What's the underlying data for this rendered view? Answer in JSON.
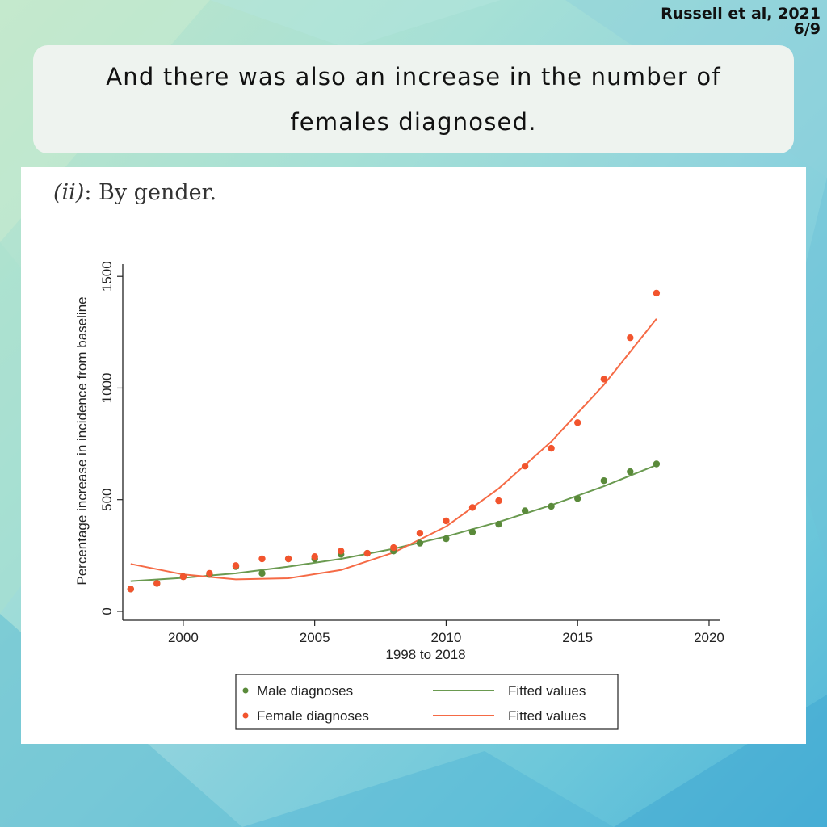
{
  "header": {
    "citation_line1": "Russell et al, 2021",
    "citation_line2": "6/9",
    "message": "And there was also an increase in the number of females diagnosed."
  },
  "panel": {
    "label": "(ii)",
    "caption": ": By gender."
  },
  "chart_data": {
    "type": "scatter",
    "xlabel": "1998 to 2018",
    "ylabel": "Percentage increase in incidence from baseline",
    "xlim": [
      1997.7,
      2020.4
    ],
    "ylim": [
      -40,
      1555
    ],
    "xticks": [
      2000,
      2005,
      2010,
      2015,
      2020
    ],
    "yticks": [
      0,
      500,
      1000,
      1500
    ],
    "grid": false,
    "legend_placement": "bottom",
    "colors": {
      "male": "#5a8a3a",
      "female": "#f2542d",
      "male_fit": "#6a9a50",
      "female_fit": "#f56a45"
    },
    "series": [
      {
        "name": "Male diagnoses",
        "kind": "points",
        "x": [
          1998,
          1999,
          2000,
          2001,
          2002,
          2003,
          2004,
          2005,
          2006,
          2007,
          2008,
          2009,
          2010,
          2011,
          2012,
          2013,
          2014,
          2015,
          2016,
          2017,
          2018
        ],
        "y": [
          100,
          125,
          155,
          165,
          200,
          170,
          235,
          235,
          255,
          260,
          270,
          305,
          325,
          355,
          390,
          450,
          470,
          505,
          585,
          625,
          660
        ]
      },
      {
        "name": "Female diagnoses",
        "kind": "points",
        "x": [
          1998,
          1999,
          2000,
          2001,
          2002,
          2003,
          2004,
          2005,
          2006,
          2007,
          2008,
          2009,
          2010,
          2011,
          2012,
          2013,
          2014,
          2015,
          2016,
          2017,
          2018
        ],
        "y": [
          100,
          125,
          155,
          170,
          205,
          235,
          235,
          245,
          270,
          260,
          285,
          350,
          405,
          465,
          495,
          650,
          730,
          845,
          1040,
          1225,
          1425
        ]
      },
      {
        "name": "Fitted values",
        "kind": "line",
        "color_key": "male_fit",
        "x": [
          1998,
          2000,
          2002,
          2004,
          2006,
          2008,
          2010,
          2012,
          2014,
          2016,
          2018
        ],
        "y": [
          135,
          150,
          170,
          200,
          235,
          280,
          335,
          400,
          475,
          560,
          655
        ]
      },
      {
        "name": "Fitted values",
        "kind": "line",
        "color_key": "female_fit",
        "x": [
          1998,
          2000,
          2002,
          2004,
          2006,
          2008,
          2010,
          2012,
          2014,
          2016,
          2018
        ],
        "y": [
          212,
          165,
          143,
          148,
          185,
          263,
          380,
          550,
          760,
          1015,
          1310
        ]
      }
    ]
  }
}
